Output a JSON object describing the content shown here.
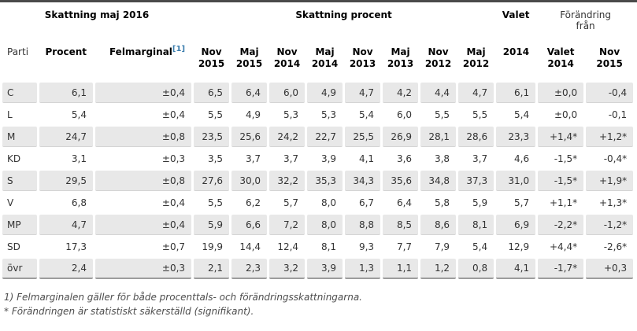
{
  "chart_data": {
    "type": "table",
    "section_headers": {
      "estimation": "Skattning maj 2016",
      "percent": "Skattning procent",
      "election": "Valet",
      "change_from": "Förändring från"
    },
    "columns": [
      {
        "label": "Parti"
      },
      {
        "label": "Procent"
      },
      {
        "label": "Felmarginal",
        "ref": "[1]"
      },
      {
        "label": "Nov",
        "sub": "2015"
      },
      {
        "label": "Maj",
        "sub": "2015"
      },
      {
        "label": "Nov",
        "sub": "2014"
      },
      {
        "label": "Maj",
        "sub": "2014"
      },
      {
        "label": "Nov",
        "sub": "2013"
      },
      {
        "label": "Maj",
        "sub": "2013"
      },
      {
        "label": "Nov",
        "sub": "2012"
      },
      {
        "label": "Maj",
        "sub": "2012"
      },
      {
        "label": "2014"
      },
      {
        "label": "Valet",
        "sub": "2014"
      },
      {
        "label": "Nov",
        "sub": "2015"
      }
    ],
    "flat_headers": [
      "Parti",
      "Procent",
      "Felmarginal [1]",
      "Nov 2015",
      "Maj 2015",
      "Nov 2014",
      "Maj 2014",
      "Nov 2013",
      "Maj 2013",
      "Nov 2012",
      "Maj 2012",
      "2014",
      "Valet 2014",
      "Nov 2015"
    ],
    "rows": [
      {
        "party": "C",
        "values": [
          "6,1",
          "±0,4",
          "6,5",
          "6,4",
          "6,0",
          "4,9",
          "4,7",
          "4,2",
          "4,4",
          "4,7",
          "6,1",
          "±0,0",
          "-0,4"
        ]
      },
      {
        "party": "L",
        "values": [
          "5,4",
          "±0,4",
          "5,5",
          "4,9",
          "5,3",
          "5,3",
          "5,4",
          "6,0",
          "5,5",
          "5,5",
          "5,4",
          "±0,0",
          "-0,1"
        ]
      },
      {
        "party": "M",
        "values": [
          "24,7",
          "±0,8",
          "23,5",
          "25,6",
          "24,2",
          "22,7",
          "25,5",
          "26,9",
          "28,1",
          "28,6",
          "23,3",
          "+1,4*",
          "+1,2*"
        ]
      },
      {
        "party": "KD",
        "values": [
          "3,1",
          "±0,3",
          "3,5",
          "3,7",
          "3,7",
          "3,9",
          "4,1",
          "3,6",
          "3,8",
          "3,7",
          "4,6",
          "-1,5*",
          "-0,4*"
        ]
      },
      {
        "party": "S",
        "values": [
          "29,5",
          "±0,8",
          "27,6",
          "30,0",
          "32,2",
          "35,3",
          "34,3",
          "35,6",
          "34,8",
          "37,3",
          "31,0",
          "-1,5*",
          "+1,9*"
        ]
      },
      {
        "party": "V",
        "values": [
          "6,8",
          "±0,4",
          "5,5",
          "6,2",
          "5,7",
          "8,0",
          "6,7",
          "6,4",
          "5,8",
          "5,9",
          "5,7",
          "+1,1*",
          "+1,3*"
        ]
      },
      {
        "party": "MP",
        "values": [
          "4,7",
          "±0,4",
          "5,9",
          "6,6",
          "7,2",
          "8,0",
          "8,8",
          "8,5",
          "8,6",
          "8,1",
          "6,9",
          "-2,2*",
          "-1,2*"
        ]
      },
      {
        "party": "SD",
        "values": [
          "17,3",
          "±0,7",
          "19,9",
          "14,4",
          "12,4",
          "8,1",
          "9,3",
          "7,7",
          "7,9",
          "5,4",
          "12,9",
          "+4,4*",
          "-2,6*"
        ]
      },
      {
        "party": "övr",
        "values": [
          "2,4",
          "±0,3",
          "2,1",
          "2,3",
          "3,2",
          "3,9",
          "1,3",
          "1,1",
          "1,2",
          "0,8",
          "4,1",
          "-1,7*",
          "+0,3"
        ]
      }
    ],
    "footnotes": [
      "1) Felmarginalen gäller för både procenttals- och förändringsskattningarna.",
      "* Förändringen är statistiskt säkerställd (signifikant)."
    ]
  },
  "colors": {
    "row_alt_bg": "#e8e8e8",
    "top_rule": "#4a4a4a",
    "footnote_link": "#3b7dad",
    "text": "#333333"
  }
}
